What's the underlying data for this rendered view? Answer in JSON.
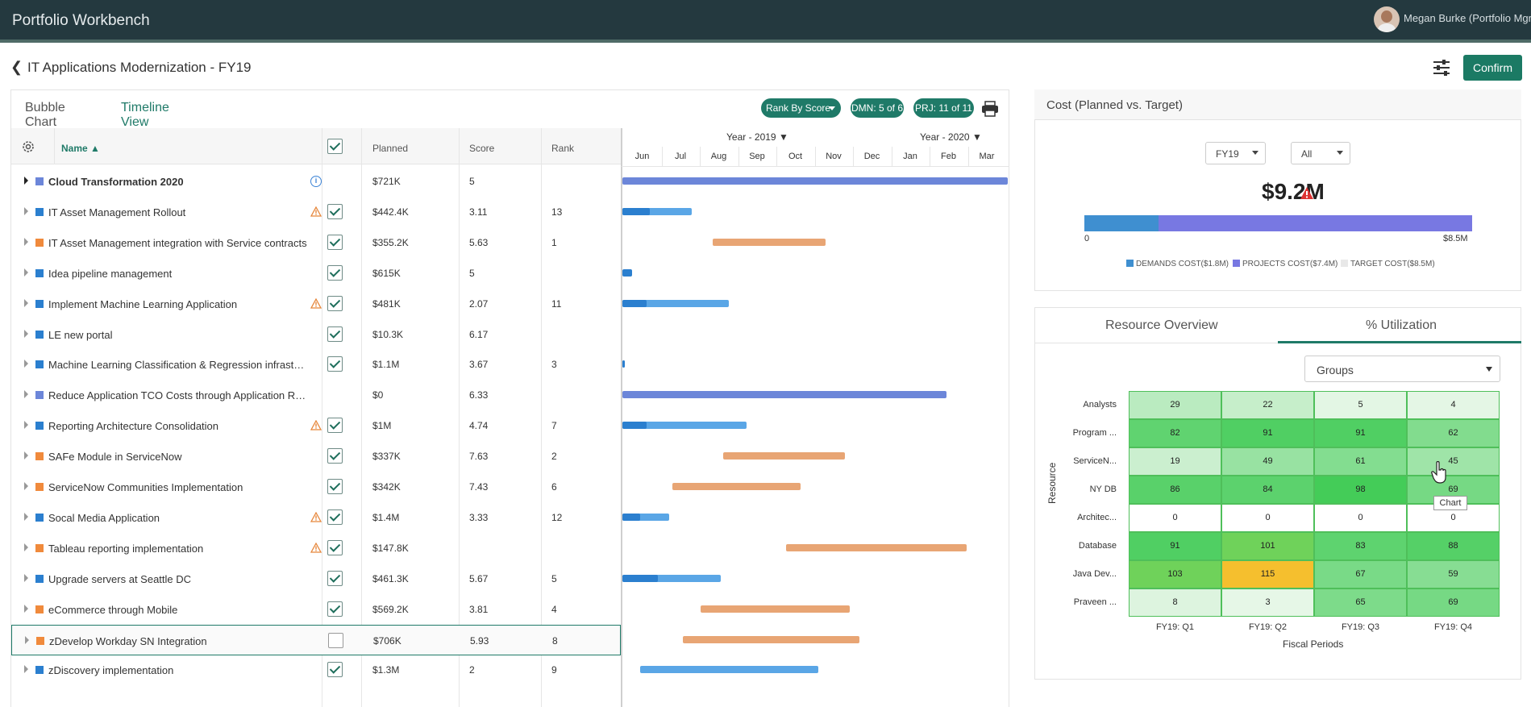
{
  "app": {
    "title": "Portfolio Workbench",
    "user": "Megan Burke (Portfolio Mgr"
  },
  "page": {
    "title": "IT Applications Modernization - FY19",
    "confirm_label": "Confirm"
  },
  "left_tabs": [
    "Bubble Chart",
    "Timeline View"
  ],
  "pills": {
    "rank": "Rank By Score",
    "dmn": "DMN: 5 of 6",
    "prj": "PRJ: 11 of 11"
  },
  "grid": {
    "headers": {
      "name": "Name ▲",
      "planned": "Planned",
      "score": "Score",
      "rank": "Rank"
    },
    "rows": [
      {
        "name": "Cloud Transformation 2020",
        "planned": "$721K",
        "score": "5",
        "rank": "",
        "color": "#6c86d9",
        "bold": true,
        "info": true,
        "check": null
      },
      {
        "name": "IT Asset Management Rollout",
        "planned": "$442.4K",
        "score": "3.11",
        "rank": "13",
        "color": "#2b7fcf",
        "warn": true,
        "check": true
      },
      {
        "name": "IT Asset Management integration with Service contracts",
        "planned": "$355.2K",
        "score": "5.63",
        "rank": "1",
        "color": "#f08a3c",
        "check": true
      },
      {
        "name": "Idea pipeline management",
        "planned": "$615K",
        "score": "5",
        "rank": "",
        "color": "#2b7fcf",
        "check": true
      },
      {
        "name": "Implement Machine Learning Application",
        "planned": "$481K",
        "score": "2.07",
        "rank": "11",
        "color": "#2b7fcf",
        "warn": true,
        "check": true
      },
      {
        "name": "LE new portal",
        "planned": "$10.3K",
        "score": "6.17",
        "rank": "",
        "color": "#2b7fcf",
        "check": true
      },
      {
        "name": "Machine Learning Classification & Regression infrast…",
        "planned": "$1.1M",
        "score": "3.67",
        "rank": "3",
        "color": "#2b7fcf",
        "check": true
      },
      {
        "name": "Reduce Application TCO Costs through Application R…",
        "planned": "$0",
        "score": "6.33",
        "rank": "",
        "color": "#6c86d9",
        "check": null
      },
      {
        "name": "Reporting Architecture Consolidation",
        "planned": "$1M",
        "score": "4.74",
        "rank": "7",
        "color": "#2b7fcf",
        "warn": true,
        "check": true
      },
      {
        "name": "SAFe Module in ServiceNow",
        "planned": "$337K",
        "score": "7.63",
        "rank": "2",
        "color": "#f08a3c",
        "check": true
      },
      {
        "name": "ServiceNow Communities Implementation",
        "planned": "$342K",
        "score": "7.43",
        "rank": "6",
        "color": "#f08a3c",
        "check": true
      },
      {
        "name": "Socal Media Application",
        "planned": "$1.4M",
        "score": "3.33",
        "rank": "12",
        "color": "#2b7fcf",
        "warn": true,
        "check": true
      },
      {
        "name": "Tableau reporting implementation",
        "planned": "$147.8K",
        "score": "",
        "rank": "",
        "color": "#f08a3c",
        "warn": true,
        "check": true
      },
      {
        "name": "Upgrade servers at Seattle DC",
        "planned": "$461.3K",
        "score": "5.67",
        "rank": "5",
        "color": "#2b7fcf",
        "check": true
      },
      {
        "name": "eCommerce through Mobile",
        "planned": "$569.2K",
        "score": "3.81",
        "rank": "4",
        "color": "#f08a3c",
        "check": true
      },
      {
        "name": "zDevelop Workday SN Integration",
        "planned": "$706K",
        "score": "5.93",
        "rank": "8",
        "color": "#f08a3c",
        "check": false
      },
      {
        "name": "zDiscovery implementation",
        "planned": "$1.3M",
        "score": "2",
        "rank": "9",
        "color": "#2b7fcf",
        "check": true
      }
    ]
  },
  "timeline": {
    "years": [
      "Year - 2019 ▼",
      "Year - 2020 ▼"
    ],
    "months": [
      "Jun",
      "Jul",
      "Aug",
      "Sep",
      "Oct",
      "Nov",
      "Dec",
      "Jan",
      "Feb",
      "Mar"
    ]
  },
  "cost": {
    "title": "Cost (Planned vs. Target)",
    "fy_select": "FY19",
    "scope_select": "All",
    "total": "$9.2M",
    "axis_min": "0",
    "axis_max": "$8.5M",
    "legend": [
      "DEMANDS COST($1.8M)",
      "PROJECTS COST($7.4M)",
      "TARGET COST($8.5M)"
    ],
    "colors": {
      "demands": "#3f8fd0",
      "projects": "#7878e2",
      "target": "#e8e8e8"
    }
  },
  "resource": {
    "tabs": [
      "Resource Overview",
      "% Utilization"
    ],
    "group_select": "Groups",
    "rows": [
      "Analysts",
      "Program ...",
      "ServiceN...",
      "NY DB",
      "Architec...",
      "Database",
      "Java Dev...",
      "Praveen ..."
    ],
    "cols": [
      "FY19: Q1",
      "FY19: Q2",
      "FY19: Q3",
      "FY19: Q4"
    ],
    "values": [
      [
        29,
        22,
        5,
        4
      ],
      [
        82,
        91,
        91,
        62
      ],
      [
        19,
        49,
        61,
        45
      ],
      [
        86,
        84,
        98,
        69
      ],
      [
        0,
        0,
        0,
        0
      ],
      [
        91,
        101,
        83,
        88
      ],
      [
        103,
        115,
        67,
        59
      ],
      [
        8,
        3,
        65,
        69
      ]
    ],
    "y_title": "Resource",
    "x_title": "Fiscal Periods",
    "tooltip": "Chart"
  }
}
